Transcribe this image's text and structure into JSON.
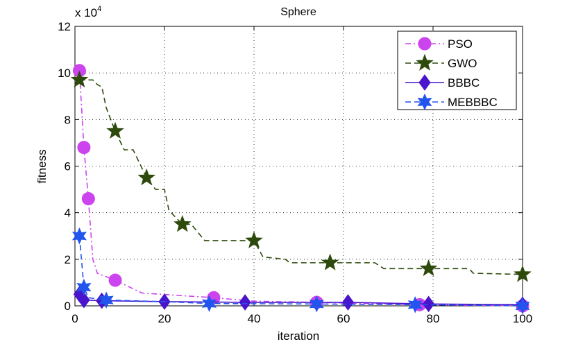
{
  "chart_data": {
    "type": "line",
    "title": "Sphere",
    "xlabel": "iteration",
    "ylabel": "fitness",
    "xlim": [
      0,
      100
    ],
    "ylim": [
      0,
      12
    ],
    "y_multiplier_text": "x 10",
    "y_multiplier_exponent": "4",
    "xticks": [
      "0",
      "20",
      "40",
      "60",
      "80",
      "100"
    ],
    "yticks": [
      "0",
      "2",
      "4",
      "6",
      "8",
      "10",
      "12"
    ],
    "grid": true,
    "legend_position": "top-right",
    "series": [
      {
        "name": "PSO",
        "color": "#cc44ee",
        "marker": "circle",
        "dash": "dashdot",
        "line": [
          [
            1,
            10.1
          ],
          [
            2,
            6.8
          ],
          [
            3,
            4.6
          ],
          [
            4,
            2.0
          ],
          [
            5,
            1.4
          ],
          [
            9,
            1.1
          ],
          [
            15,
            0.55
          ],
          [
            31,
            0.35
          ],
          [
            40,
            0.2
          ],
          [
            54,
            0.15
          ],
          [
            77,
            0.05
          ],
          [
            100,
            0.0
          ]
        ],
        "markers": [
          [
            1,
            10.1
          ],
          [
            2,
            6.8
          ],
          [
            3,
            4.6
          ],
          [
            9,
            1.1
          ],
          [
            31,
            0.35
          ],
          [
            54,
            0.15
          ],
          [
            77,
            0.05
          ],
          [
            100,
            0.0
          ]
        ]
      },
      {
        "name": "GWO",
        "color": "#2d4a0c",
        "marker": "star",
        "dash": "dashed",
        "line": [
          [
            1,
            9.7
          ],
          [
            4,
            9.7
          ],
          [
            5,
            9.5
          ],
          [
            6,
            9.4
          ],
          [
            7,
            8.5
          ],
          [
            9,
            7.5
          ],
          [
            11,
            6.7
          ],
          [
            13,
            6.7
          ],
          [
            16,
            5.5
          ],
          [
            18,
            5.0
          ],
          [
            20,
            5.0
          ],
          [
            21,
            4.1
          ],
          [
            24,
            3.5
          ],
          [
            26,
            3.5
          ],
          [
            29,
            2.8
          ],
          [
            40,
            2.8
          ],
          [
            42,
            2.1
          ],
          [
            47,
            2.0
          ],
          [
            48,
            1.85
          ],
          [
            57,
            1.85
          ],
          [
            67,
            1.85
          ],
          [
            69,
            1.6
          ],
          [
            79,
            1.6
          ],
          [
            88,
            1.6
          ],
          [
            89,
            1.4
          ],
          [
            100,
            1.35
          ]
        ],
        "markers": [
          [
            1,
            9.7
          ],
          [
            9,
            7.5
          ],
          [
            16,
            5.5
          ],
          [
            24,
            3.5
          ],
          [
            40,
            2.8
          ],
          [
            57,
            1.85
          ],
          [
            79,
            1.6
          ],
          [
            100,
            1.35
          ]
        ]
      },
      {
        "name": "BBBC",
        "color": "#4a14cc",
        "marker": "diamond",
        "dash": "solid",
        "line": [
          [
            1,
            0.5
          ],
          [
            2,
            0.25
          ],
          [
            6,
            0.22
          ],
          [
            20,
            0.18
          ],
          [
            38,
            0.15
          ],
          [
            61,
            0.15
          ],
          [
            79,
            0.08
          ],
          [
            100,
            0.05
          ]
        ],
        "markers": [
          [
            1,
            0.5
          ],
          [
            2,
            0.25
          ],
          [
            6,
            0.22
          ],
          [
            20,
            0.18
          ],
          [
            38,
            0.15
          ],
          [
            61,
            0.15
          ],
          [
            79,
            0.08
          ],
          [
            100,
            0.05
          ]
        ]
      },
      {
        "name": "MEBBBC",
        "color": "#2255ee",
        "marker": "hexstar",
        "dash": "dashed",
        "line": [
          [
            1,
            3.0
          ],
          [
            2,
            0.8
          ],
          [
            3,
            0.35
          ],
          [
            7,
            0.25
          ],
          [
            20,
            0.18
          ],
          [
            30,
            0.1
          ],
          [
            54,
            0.08
          ],
          [
            76,
            0.05
          ],
          [
            100,
            0.0
          ]
        ],
        "markers": [
          [
            1,
            3.0
          ],
          [
            2,
            0.8
          ],
          [
            7,
            0.25
          ],
          [
            30,
            0.1
          ],
          [
            54,
            0.08
          ],
          [
            76,
            0.05
          ],
          [
            100,
            0.0
          ]
        ]
      }
    ]
  }
}
